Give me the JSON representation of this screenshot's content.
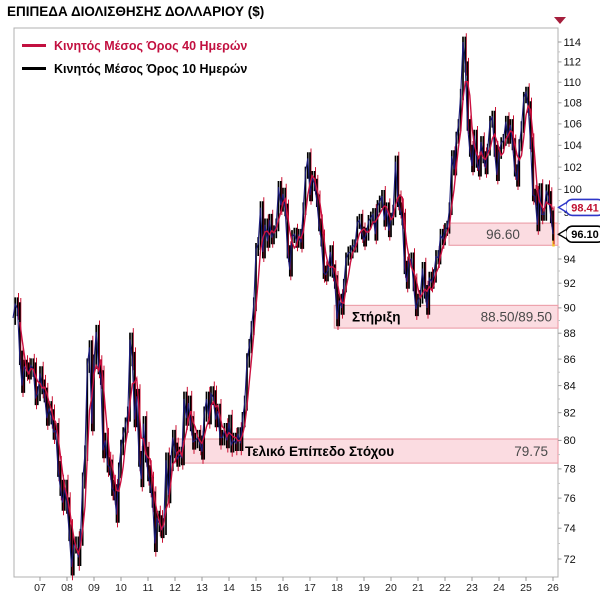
{
  "title": "ΕΠΙΠΕΔΑ ΔΙΟΛΙΣΘΗΣΗΣ ΔΟΛΛΑΡΙΟΥ ($)",
  "legend": [
    {
      "label": "Κινητός Μέσος Όρος 40 Ημερών",
      "color": "#c21040"
    },
    {
      "label": "Κινητός Μέσος Όρος 10 Ημερών",
      "color": "#000000"
    }
  ],
  "chart_data": {
    "type": "line",
    "title": "ΕΠΙΠΕΔΑ ΔΙΟΛΙΣΘΗΣΗΣ ΔΟΛΛΑΡΙΟΥ ($)",
    "y_scale": "log",
    "ylim": [
      71,
      115.5
    ],
    "x_range_years": [
      2006.0,
      2026.2
    ],
    "grid": false,
    "legend_position": "top-left",
    "x_ticks": [
      "07",
      "08",
      "09",
      "10",
      "11",
      "12",
      "13",
      "14",
      "15",
      "16",
      "17",
      "18",
      "19",
      "20",
      "21",
      "22",
      "23",
      "24",
      "25",
      "26"
    ],
    "y_ticks": [
      114,
      112,
      110,
      108,
      106,
      104,
      102,
      100,
      98,
      96,
      94,
      92,
      90,
      88,
      86,
      84,
      82,
      80,
      78,
      76,
      74,
      72
    ],
    "x_start_year": 2006.0,
    "points_per_year": 12,
    "price_monthly": [
      89.2,
      90.3,
      89.9,
      86.1,
      84.0,
      85.4,
      85.2,
      85.0,
      85.5,
      85.2,
      83.1,
      83.4,
      84.9,
      83.9,
      83.3,
      81.6,
      82.3,
      81.7,
      80.6,
      80.7,
      78.0,
      76.7,
      75.7,
      76.7,
      75.5,
      73.7,
      71.5,
      72.9,
      72.9,
      72.1,
      73.4,
      77.2,
      79.1,
      85.5,
      86.9,
      81.2,
      85.8,
      88.1,
      85.4,
      84.6,
      79.3,
      80.0,
      78.3,
      78.1,
      76.7,
      76.4,
      74.9,
      77.9,
      79.5,
      80.4,
      81.1,
      81.9,
      87.5,
      86.0,
      81.5,
      83.2,
      78.7,
      77.3,
      81.2,
      79.0,
      77.7,
      76.9,
      75.9,
      73.0,
      74.6,
      74.3,
      73.9,
      74.1,
      78.6,
      76.2,
      78.4,
      80.2,
      79.3,
      78.7,
      79.0,
      78.8,
      83.0,
      81.6,
      82.7,
      81.2,
      79.9,
      80.0,
      80.2,
      79.8,
      79.2,
      81.9,
      83.0,
      81.7,
      83.4,
      83.1,
      81.5,
      82.1,
      80.2,
      80.2,
      80.7,
      80.0,
      81.3,
      79.7,
      80.0,
      79.8,
      80.4,
      79.8,
      81.5,
      82.7,
      85.9,
      87.0,
      88.4,
      90.3,
      94.8,
      95.3,
      98.4,
      94.6,
      96.9,
      95.5,
      97.3,
      95.8,
      96.3,
      96.9,
      100.2,
      98.6,
      99.6,
      98.2,
      94.6,
      93.1,
      95.9,
      96.1,
      95.5,
      96.0,
      95.4,
      98.3,
      101.5,
      102.8,
      99.5,
      101.1,
      100.4,
      99.0,
      96.9,
      95.6,
      92.9,
      92.7,
      93.1,
      94.6,
      93.0,
      92.1,
      89.1,
      90.6,
      90.0,
      91.8,
      94.0,
      94.5,
      94.6,
      95.1,
      95.1,
      97.1,
      97.3,
      96.2,
      95.6,
      96.1,
      97.2,
      97.5,
      97.8,
      96.1,
      98.5,
      98.9,
      99.4,
      97.3,
      98.3,
      96.4,
      97.4,
      98.1,
      102.5,
      99.0,
      98.3,
      97.4,
      93.3,
      92.1,
      93.9,
      94.0,
      91.9,
      89.9,
      90.6,
      90.9,
      93.2,
      91.3,
      90.0,
      92.4,
      92.1,
      92.6,
      94.2,
      94.1,
      96.0,
      95.7,
      96.5,
      96.7,
      98.3,
      103.0,
      101.8,
      104.7,
      105.9,
      108.8,
      114.0,
      111.5,
      105.9,
      103.5,
      102.1,
      104.9,
      102.5,
      101.7,
      104.3,
      102.9,
      101.9,
      103.6,
      106.2,
      106.7,
      103.5,
      101.3,
      103.3,
      104.2,
      104.5,
      106.2,
      104.7,
      105.9,
      104.1,
      101.7,
      100.8,
      104.0,
      105.7,
      108.5,
      109.0,
      107.6,
      104.2,
      99.5,
      99.4,
      96.9,
      100.0,
      97.8,
      97.8,
      99.9,
      99.3,
      97.6,
      96.1
    ],
    "series": [
      {
        "name": "Κινητός Μέσος Όρος 40 Ημερών",
        "color": "#cb1141",
        "window_months": 4
      },
      {
        "name": "Κινητός Μέσος Όρος 10 Ημερών",
        "color": "#1b1b7a",
        "window_months": 1
      }
    ],
    "bands": [
      {
        "label": "",
        "value_label": "96.60",
        "start_year": 2022.15,
        "top": 97.05,
        "bottom": 95.15
      },
      {
        "label": "Στήριξη",
        "value_label": "88.50/89.50",
        "start_year": 2017.9,
        "top": 90.2,
        "bottom": 88.4
      },
      {
        "label": "Τελικό Επίπεδο Στόχου",
        "value_label": "79.75",
        "start_year": 2011.9,
        "top": 80.1,
        "bottom": 78.4
      }
    ],
    "ma_tag": {
      "text": "98.41",
      "value": 98.41
    },
    "last_price_tag": {
      "text": "96.10",
      "value": 96.1
    },
    "colors": {
      "price_bars": "#000000",
      "price_down_ticks": "#cc1133",
      "ma40_line": "#cb1141",
      "ma10_line": "#1b1b7a",
      "band_fill": "#fbdce1",
      "band_border": "#eda3ad",
      "band_text": "#000000",
      "band_value_text": "#4a4a4a",
      "current_bar": "#f3c620",
      "frame": "#b0b0b0",
      "tick": "#999999"
    }
  }
}
